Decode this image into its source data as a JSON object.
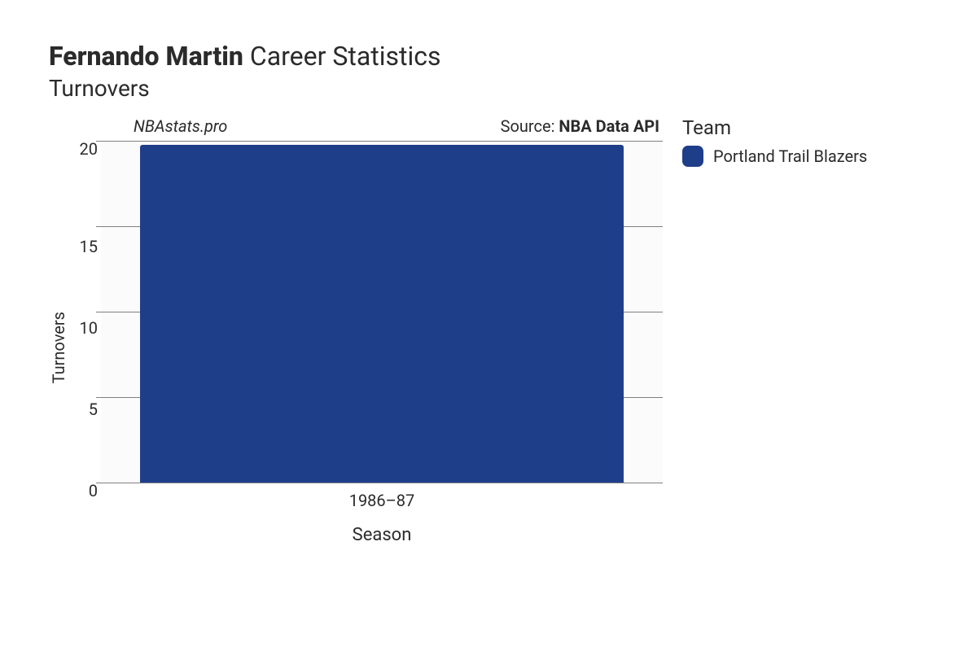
{
  "title": {
    "player_name": "Fernando Martin",
    "suffix": "Career Statistics",
    "metric": "Turnovers"
  },
  "annotations": {
    "site": "NBAstats.pro",
    "source_prefix": "Source: ",
    "source_name": "NBA Data API"
  },
  "chart": {
    "type": "bar",
    "x_label": "Season",
    "y_label": "Turnovers",
    "ylim": [
      0,
      20
    ],
    "yticks": [
      0,
      5,
      10,
      15,
      20
    ],
    "categories": [
      "1986–87"
    ],
    "values": [
      19.8
    ],
    "bar_colors": [
      "#1f3e8a"
    ],
    "bar_width": 0.86,
    "background_color": "#fbfbfb",
    "grid_color": "#808080",
    "axis_label_fontsize": 20,
    "tick_fontsize": 20
  },
  "legend": {
    "title": "Team",
    "items": [
      {
        "label": "Portland Trail Blazers",
        "color": "#1f3e8a"
      }
    ]
  }
}
